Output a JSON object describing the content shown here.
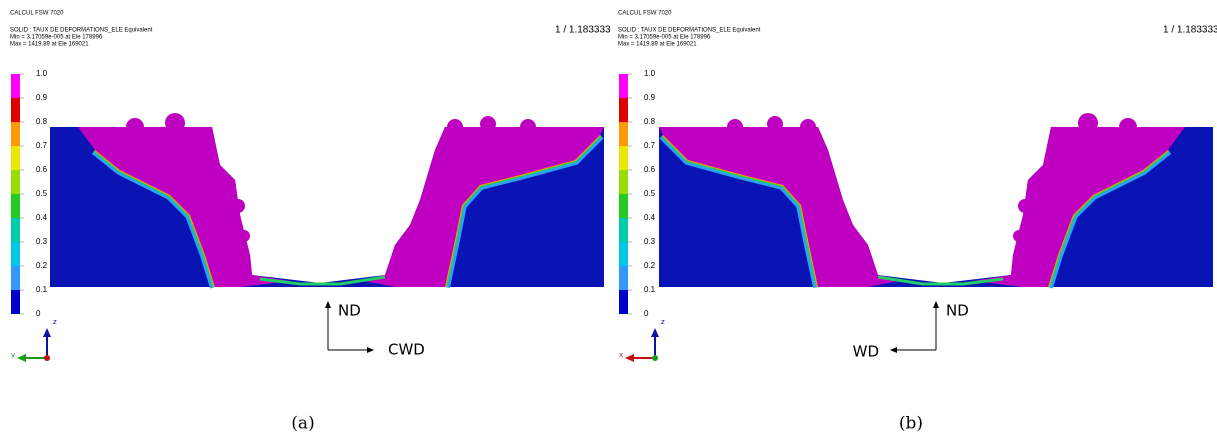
{
  "panels": [
    {
      "title": "CALCUL FSW 7020",
      "solid": "SOLID : TAUX DE DEFORMATIONS_ELE Equivalent",
      "min": "Min = 3.17059e-005 at Ele 178996",
      "max": "Max = 1419.89 at Ele 169021",
      "ratio": "1 / 1.183333",
      "legend": [
        "1.0",
        "0.9",
        "0.8",
        "0.7",
        "0.6",
        "0.5",
        "0.4",
        "0.3",
        "0.2",
        "0.1",
        "0"
      ],
      "triad": {
        "vertical": "z",
        "horizontal": "y"
      },
      "arrows": {
        "vertical": "ND",
        "horizontal": "CWD"
      },
      "caption": "(a)"
    },
    {
      "title": "CALCUL FSW 7020",
      "solid": "SOLID : TAUX DE DEFORMATIONS_ELE Equivalent",
      "min": "Min = 3.17059e-005 at Ele 178996",
      "max": "Max = 1419.89 at Ele 169021",
      "ratio": "1 / 1.183333",
      "legend": [
        "1.0",
        "0.9",
        "0.8",
        "0.7",
        "0.6",
        "0.5",
        "0.4",
        "0.3",
        "0.2",
        "0.1",
        "0"
      ],
      "triad": {
        "vertical": "z",
        "horizontal": "x"
      },
      "arrows": {
        "vertical": "ND",
        "horizontal": "WD"
      },
      "caption": "(b)"
    }
  ]
}
